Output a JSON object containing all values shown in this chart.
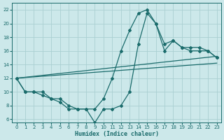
{
  "xlabel": "Humidex (Indice chaleur)",
  "bg_color": "#cce8ea",
  "grid_color": "#aacfd2",
  "line_color": "#1a6b6b",
  "xlim": [
    -0.5,
    23.5
  ],
  "ylim": [
    5.5,
    23
  ],
  "xticks": [
    0,
    1,
    2,
    3,
    4,
    5,
    6,
    7,
    8,
    9,
    10,
    11,
    12,
    13,
    14,
    15,
    16,
    17,
    18,
    19,
    20,
    21,
    22,
    23
  ],
  "yticks": [
    6,
    8,
    10,
    12,
    14,
    16,
    18,
    20,
    22
  ],
  "curve1_x": [
    0,
    1,
    2,
    3,
    4,
    5,
    6,
    7,
    8,
    9,
    10,
    11,
    12,
    13,
    14,
    15,
    16,
    17,
    18,
    19,
    20,
    21,
    22,
    23
  ],
  "curve1_y": [
    12,
    10,
    10,
    10,
    9,
    9,
    8,
    7.5,
    7.5,
    7.5,
    9,
    12,
    16,
    19,
    21.5,
    22,
    20,
    17,
    17.5,
    16.5,
    16.5,
    16.5,
    16,
    15
  ],
  "curve2_x": [
    0,
    1,
    2,
    3,
    4,
    5,
    6,
    7,
    8,
    9,
    10,
    11,
    12,
    13,
    14,
    15,
    16,
    17,
    18,
    19,
    20,
    21,
    22,
    23
  ],
  "curve2_y": [
    12,
    10,
    10,
    9.5,
    9,
    8.5,
    7.5,
    7.5,
    7.5,
    5.5,
    7.5,
    7.5,
    8,
    10,
    17,
    21.5,
    20,
    16,
    17.5,
    16.5,
    16,
    16,
    16,
    15
  ],
  "line3_x": [
    0,
    23
  ],
  "line3_y": [
    12,
    15.2
  ],
  "line4_x": [
    0,
    23
  ],
  "line4_y": [
    12,
    14.2
  ]
}
